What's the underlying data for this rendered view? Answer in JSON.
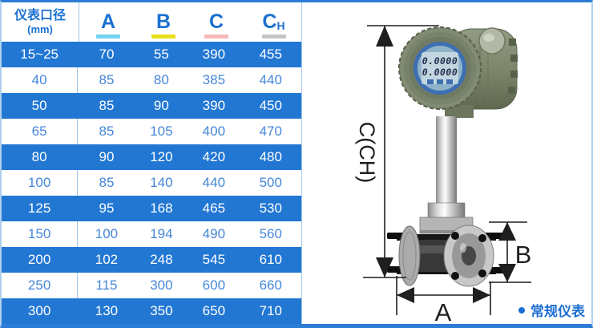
{
  "table": {
    "header": {
      "diameter_label": "仪表口径",
      "diameter_unit": "(mm)",
      "columns": [
        {
          "label": "A",
          "sub": "",
          "underline_color": "#70d5ef"
        },
        {
          "label": "B",
          "sub": "",
          "underline_color": "#e6df1c"
        },
        {
          "label": "C",
          "sub": "",
          "underline_color": "#f5b8b8"
        },
        {
          "label": "C",
          "sub": "H",
          "underline_color": "#c5c5c5"
        }
      ]
    },
    "rows": [
      {
        "dn": "15~25",
        "values": [
          "70",
          "55",
          "390",
          "455"
        ],
        "highlighted": true
      },
      {
        "dn": "40",
        "values": [
          "85",
          "80",
          "385",
          "440"
        ],
        "highlighted": false
      },
      {
        "dn": "50",
        "values": [
          "85",
          "90",
          "390",
          "450"
        ],
        "highlighted": true
      },
      {
        "dn": "65",
        "values": [
          "85",
          "105",
          "400",
          "470"
        ],
        "highlighted": false
      },
      {
        "dn": "80",
        "values": [
          "90",
          "120",
          "420",
          "480"
        ],
        "highlighted": true
      },
      {
        "dn": "100",
        "values": [
          "85",
          "140",
          "440",
          "500"
        ],
        "highlighted": false
      },
      {
        "dn": "125",
        "values": [
          "95",
          "168",
          "465",
          "530"
        ],
        "highlighted": true
      },
      {
        "dn": "150",
        "values": [
          "100",
          "194",
          "490",
          "560"
        ],
        "highlighted": false
      },
      {
        "dn": "200",
        "values": [
          "102",
          "248",
          "545",
          "610"
        ],
        "highlighted": true
      },
      {
        "dn": "250",
        "values": [
          "115",
          "300",
          "600",
          "660"
        ],
        "highlighted": false
      },
      {
        "dn": "300",
        "values": [
          "130",
          "350",
          "650",
          "710"
        ],
        "highlighted": true
      }
    ]
  },
  "diagram": {
    "height_dim_label": "C(CH)",
    "width_dim_label": "A",
    "body_dim_label": "B",
    "lcd_row1": "0.0000",
    "lcd_row2": "0.0000",
    "caption": "常规仪表"
  },
  "colors": {
    "row_highlight": "#2277d3",
    "header_text": "#1b70d0",
    "cell_text": "#4587d8",
    "grid_line": "#9fc6ea",
    "frame_border": "#2b7cd4",
    "caption_text": "#1d6fd2"
  }
}
